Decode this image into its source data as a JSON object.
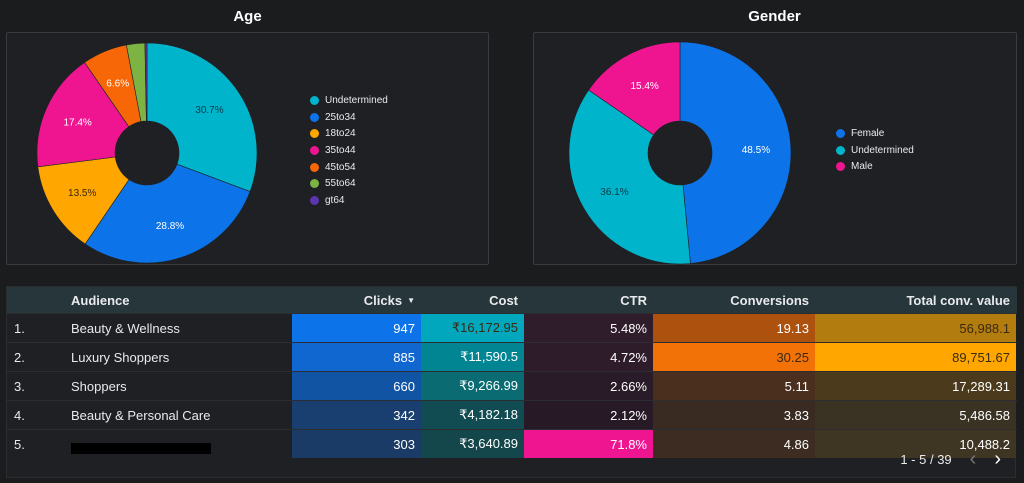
{
  "age": {
    "title": "Age",
    "legend": [
      {
        "label": "Undetermined",
        "color": "#00b4cc"
      },
      {
        "label": "25to34",
        "color": "#0d73e9"
      },
      {
        "label": "18to24",
        "color": "#ffa600"
      },
      {
        "label": "35to44",
        "color": "#ef1591"
      },
      {
        "label": "45to54",
        "color": "#f76707"
      },
      {
        "label": "55to64",
        "color": "#7cb342"
      },
      {
        "label": "gt64",
        "color": "#5e35b1"
      }
    ]
  },
  "gender": {
    "title": "Gender",
    "legend": [
      {
        "label": "Female",
        "color": "#0d73e9"
      },
      {
        "label": "Undetermined",
        "color": "#00b4cc"
      },
      {
        "label": "Male",
        "color": "#ef1591"
      }
    ]
  },
  "chart_data": [
    {
      "type": "pie",
      "title": "Age",
      "categories": [
        "Undetermined",
        "25to34",
        "18to24",
        "35to44",
        "45to54",
        "55to64",
        "gt64"
      ],
      "values": [
        30.7,
        28.8,
        13.5,
        17.4,
        6.6,
        2.7,
        0.3
      ],
      "labels": [
        "30.7%",
        "28.8%",
        "13.5%",
        "17.4%",
        "6.6%",
        "",
        ""
      ],
      "colors": [
        "#00b4cc",
        "#0d73e9",
        "#ffa600",
        "#ef1591",
        "#f76707",
        "#7cb342",
        "#5e35b1"
      ],
      "legend_position": "right"
    },
    {
      "type": "pie",
      "title": "Gender",
      "categories": [
        "Female",
        "Undetermined",
        "Male"
      ],
      "values": [
        48.5,
        36.1,
        15.4
      ],
      "labels": [
        "48.5%",
        "36.1%",
        "15.4%"
      ],
      "colors": [
        "#0d73e9",
        "#00b4cc",
        "#ef1591"
      ],
      "legend_position": "right"
    }
  ],
  "table": {
    "headers": {
      "audience": "Audience",
      "clicks": "Clicks",
      "cost": "Cost",
      "ctr": "CTR",
      "conversions": "Conversions",
      "total_conv_value": "Total conv. value"
    },
    "sort_icon": "sort-descending-icon",
    "rows": [
      {
        "index": "1.",
        "audience": "Beauty & Wellness",
        "clicks": "947",
        "cost": "₹16,172.95",
        "ctr": "5.48%",
        "conversions": "19.13",
        "total_conv_value": "56,988.1"
      },
      {
        "index": "2.",
        "audience": "Luxury Shoppers",
        "clicks": "885",
        "cost": "₹11,590.5",
        "ctr": "4.72%",
        "conversions": "30.25",
        "total_conv_value": "89,751.67"
      },
      {
        "index": "3.",
        "audience": "Shoppers",
        "clicks": "660",
        "cost": "₹9,266.99",
        "ctr": "2.66%",
        "conversions": "5.11",
        "total_conv_value": "17,289.31"
      },
      {
        "index": "4.",
        "audience": "Beauty & Personal Care",
        "clicks": "342",
        "cost": "₹4,182.18",
        "ctr": "2.12%",
        "conversions": "3.83",
        "total_conv_value": "5,486.58"
      },
      {
        "index": "5.",
        "audience": "",
        "clicks": "303",
        "cost": "₹3,640.89",
        "ctr": "71.8%",
        "conversions": "4.86",
        "total_conv_value": "10,488.2"
      }
    ],
    "cell_colors": [
      {
        "clicks": "#0d73e9",
        "cost": "#00a7bd",
        "ctr": "#301d2c",
        "conversions": "#ad510f",
        "total_conv_value": "#b27c0f"
      },
      {
        "clicks": "#1067d0",
        "cost": "#018593",
        "ctr": "#2e1c2a",
        "conversions": "#f27208",
        "total_conv_value": "#ffa600"
      },
      {
        "clicks": "#1254a4",
        "cost": "#0a6b73",
        "ctr": "#2a1b28",
        "conversions": "#4a2e1e",
        "total_conv_value": "#4c3a1d"
      },
      {
        "clicks": "#193f70",
        "cost": "#104c52",
        "ctr": "#271a26",
        "conversions": "#3a2b22",
        "total_conv_value": "#3a3324"
      },
      {
        "clicks": "#1a3b66",
        "cost": "#13474c",
        "ctr": "#ef1591",
        "conversions": "#3d2c22",
        "total_conv_value": "#3f3523"
      }
    ],
    "pagination": {
      "label": "1 - 5 / 39",
      "prev_icon": "chevron-left-icon",
      "next_icon": "chevron-right-icon"
    }
  }
}
